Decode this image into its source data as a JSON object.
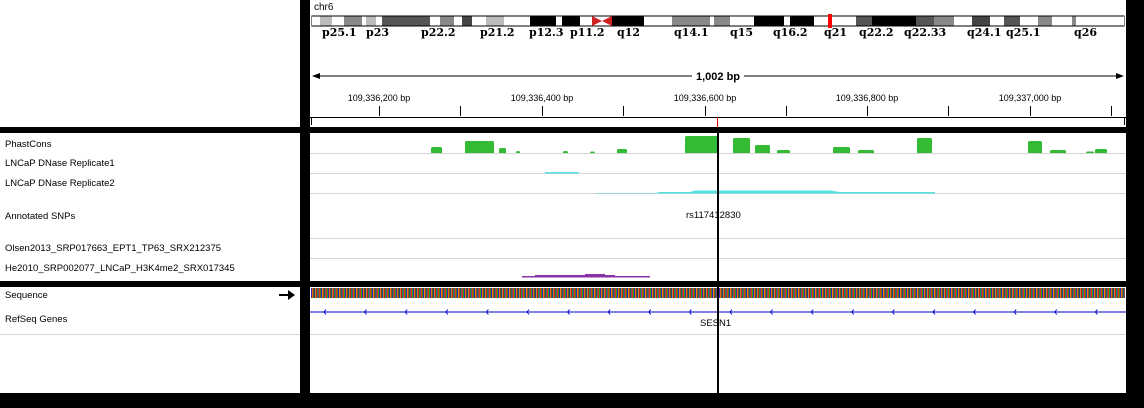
{
  "header": {
    "chromosome": "chr6",
    "span_label": "1,002 bp",
    "band_labels": [
      "p25.1",
      "p23",
      "p22.2",
      "p21.2",
      "p12.3",
      "p11.2",
      "q12",
      "q14.1",
      "q15",
      "q16.2",
      "q21",
      "q22.2",
      "q22.33",
      "q24.1",
      "q25.1",
      "q26"
    ],
    "ruler_ticks": [
      "109,336,200 bp",
      "109,336,400 bp",
      "109,336,600 bp",
      "109,336,800 bp",
      "109,337,000 bp"
    ]
  },
  "tracks": {
    "phastcons": "PhastCons",
    "dnase1": "LNCaP DNase Replicate1",
    "dnase2": "LNCaP DNase Replicate2",
    "snps": "Annotated SNPs",
    "olsen": "Olsen2013_SRP017663_EPT1_TP63_SRX212375",
    "he2010": "He2010_SRP002077_LNCaP_H3K4me2_SRX017345",
    "sequence": "Sequence",
    "refseq": "RefSeq Genes"
  },
  "features": {
    "snp_name": "rs117412830",
    "gene_name": "SESN1"
  },
  "colors": {
    "phastcons": "#33bb33",
    "dnase": "#55e0e0",
    "h3k4me2": "#8833aa",
    "gene": "#0000cc",
    "center_line": "#000000",
    "cytoband_marker": "#ff0000"
  }
}
